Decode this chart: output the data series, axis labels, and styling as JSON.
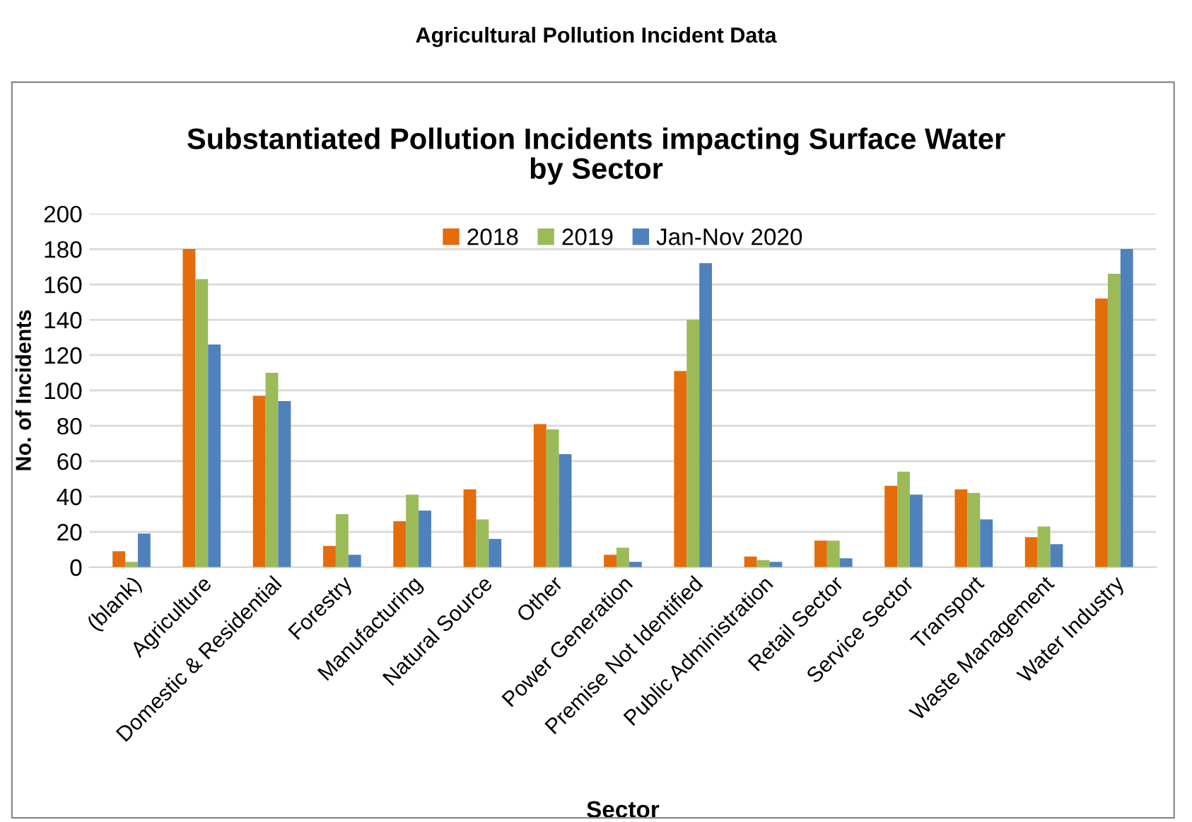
{
  "chart_data": {
    "type": "bar",
    "title": "Agricultural Pollution Incident Data",
    "subtitle": "Substantiated Pollution Incidents impacting Surface Water\nby Sector",
    "xlabel": "Sector",
    "ylabel": "No. of Incidents",
    "categories": [
      "(blank)",
      "Agriculture",
      "Domestic & Residential",
      "Forestry",
      "Manufacturing",
      "Natural Source",
      "Other",
      "Power Generation",
      "Premise Not Identified",
      "Public Administration",
      "Retail Sector",
      "Service Sector",
      "Transport",
      "Waste Management",
      "Water Industry"
    ],
    "series": [
      {
        "name": "2018",
        "color": "#e46c0a",
        "values": [
          9,
          180,
          97,
          12,
          26,
          44,
          81,
          7,
          111,
          6,
          15,
          46,
          44,
          17,
          152
        ]
      },
      {
        "name": "2019",
        "color": "#9bbb59",
        "values": [
          3,
          163,
          110,
          30,
          41,
          27,
          78,
          11,
          140,
          4,
          15,
          54,
          42,
          23,
          166
        ]
      },
      {
        "name": "Jan-Nov 2020",
        "color": "#4f81bd",
        "values": [
          19,
          126,
          94,
          7,
          32,
          16,
          64,
          3,
          172,
          3,
          5,
          41,
          27,
          13,
          180
        ]
      }
    ],
    "ylim": [
      0,
      200
    ],
    "yticks": [
      0,
      20,
      40,
      60,
      80,
      100,
      120,
      140,
      160,
      180,
      200
    ],
    "grid": "y",
    "legend": "top"
  }
}
